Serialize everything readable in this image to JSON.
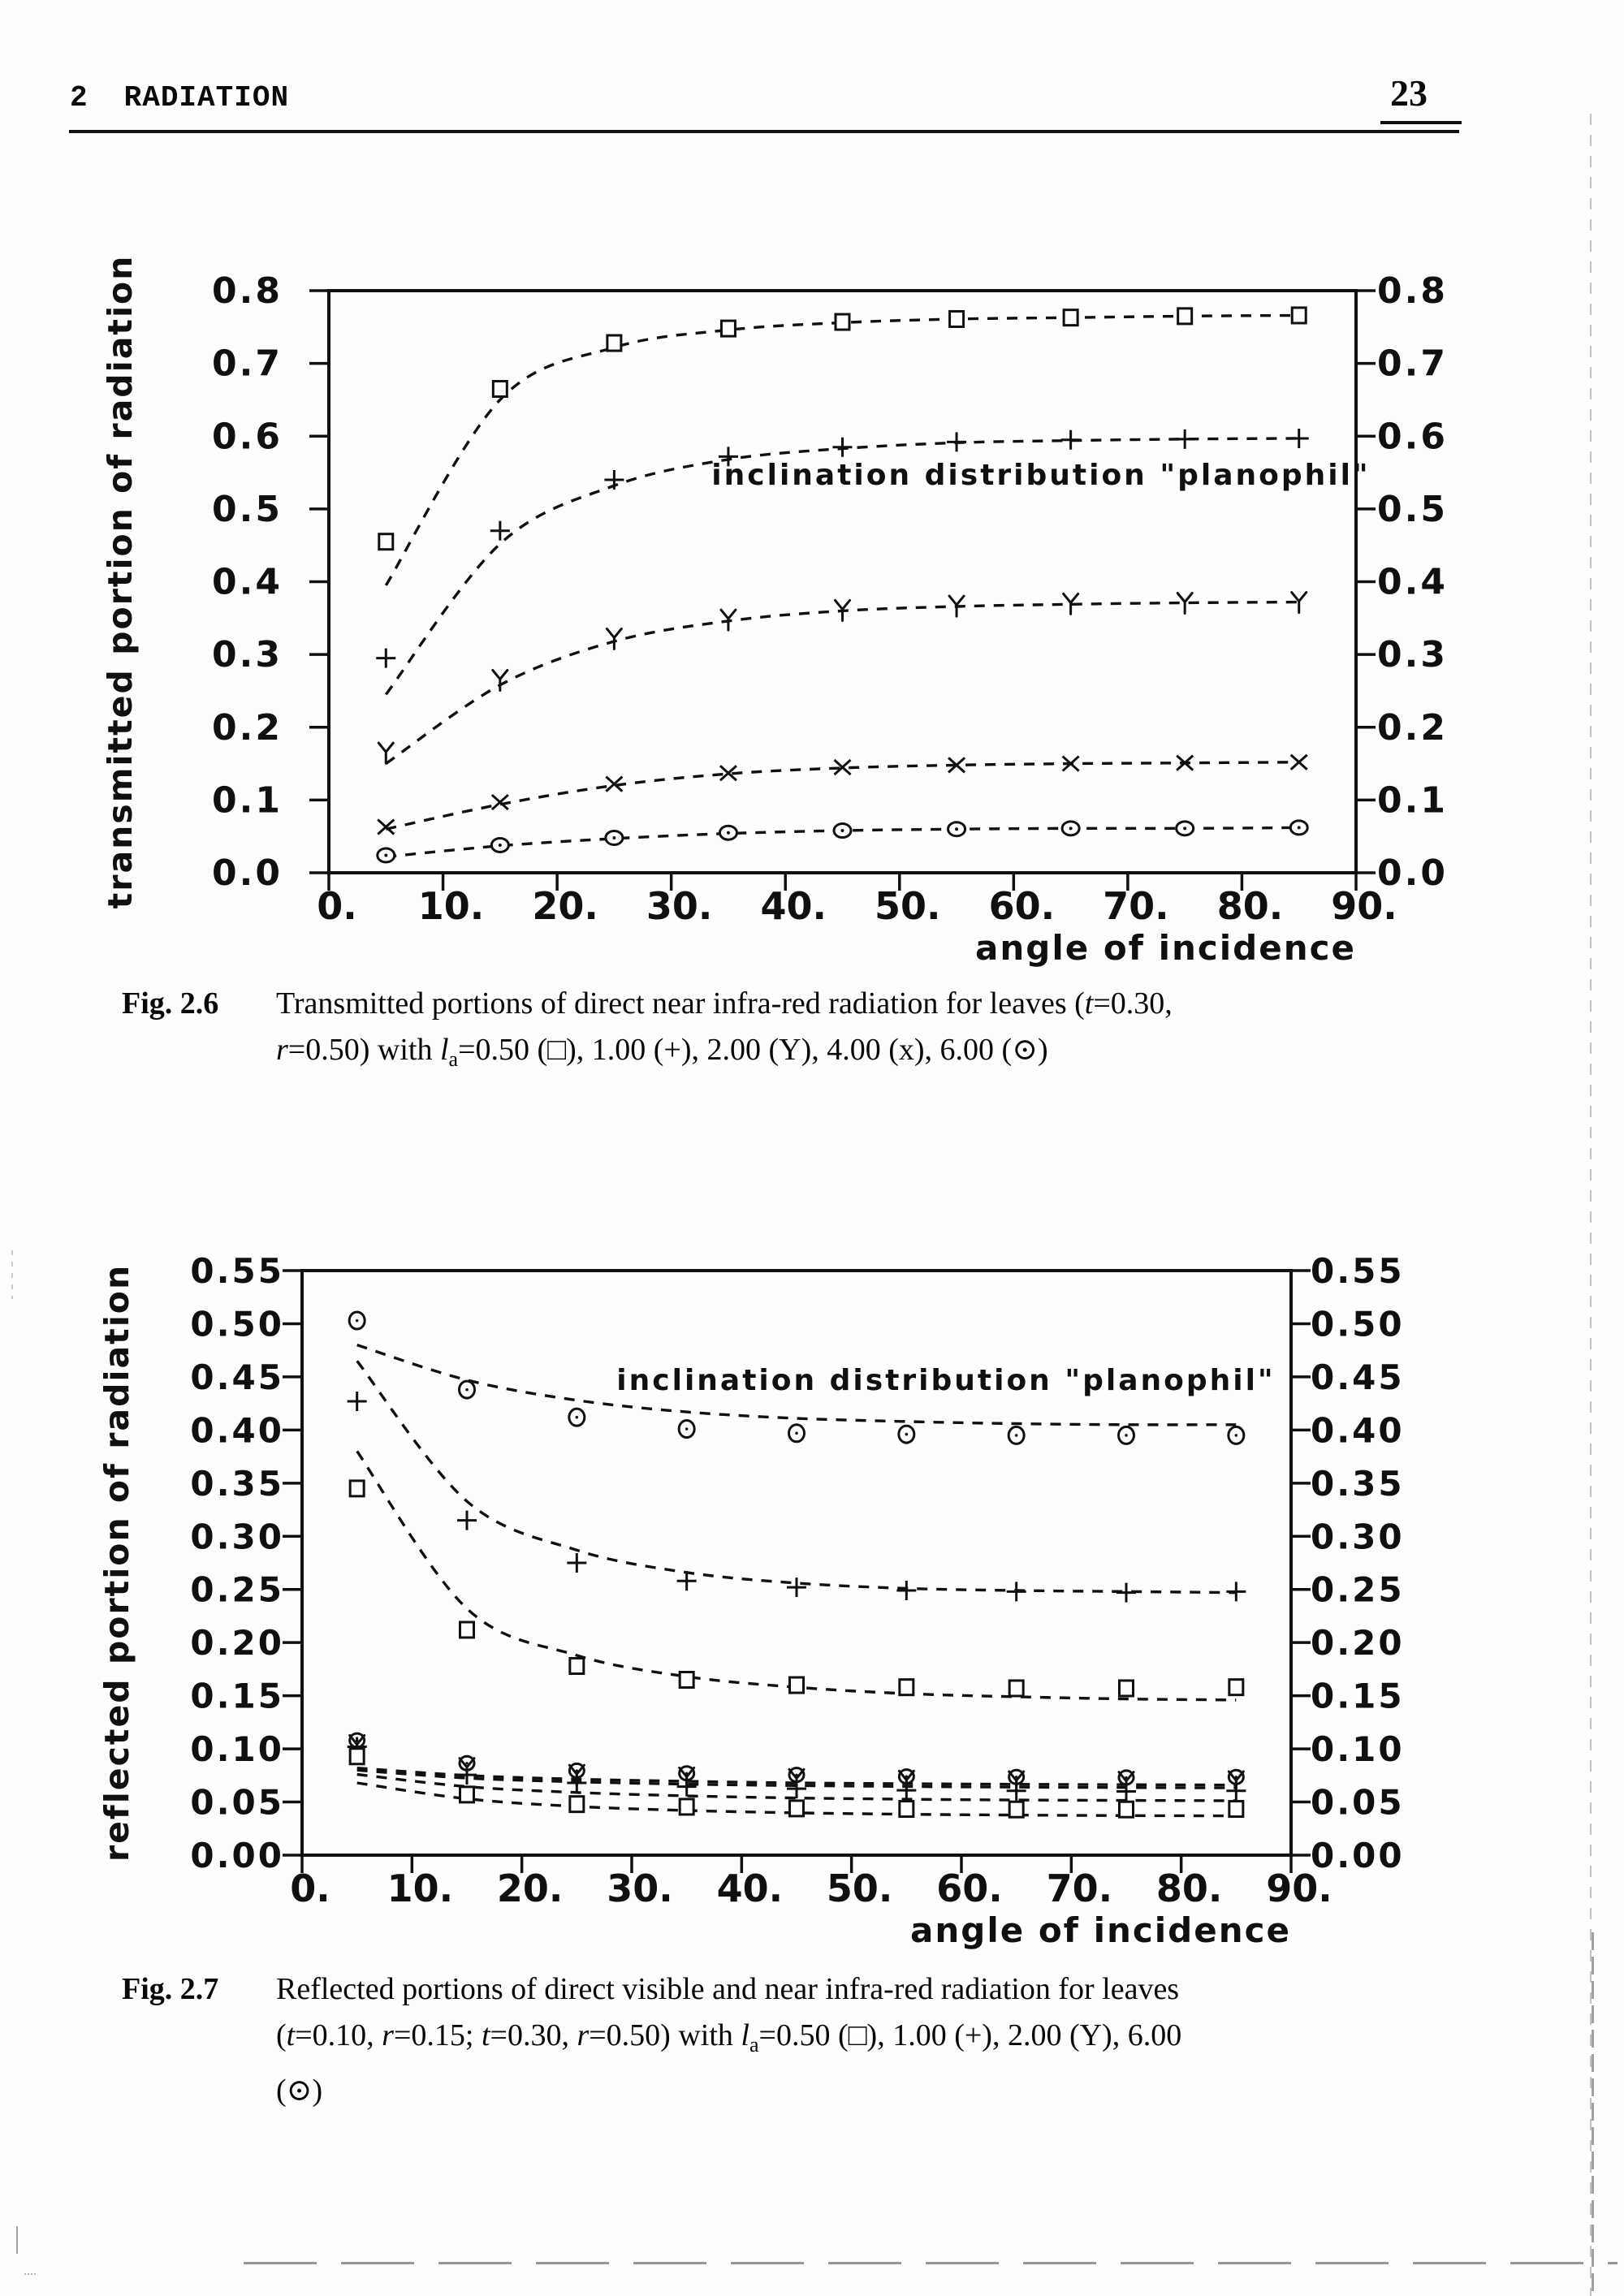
{
  "header": {
    "chapter": "2",
    "title": "RADIATION",
    "page_number": "23"
  },
  "figures": [
    {
      "label": "Fig. 2.6",
      "lines": [
        [
          {
            "t": "Transmitted portions of direct near infra-red radiation for leaves ("
          },
          {
            "t": "t",
            "s": "i"
          },
          {
            "t": "=0.30,"
          }
        ],
        [
          {
            "t": "r",
            "s": "i"
          },
          {
            "t": "=0.50) with "
          },
          {
            "t": "l",
            "s": "i"
          },
          {
            "t": "a",
            "s": "sub"
          },
          {
            "t": "=0.50 (□), 1.00 (+), 2.00 (Y), 4.00 (x), 6.00 (⊙)"
          }
        ]
      ]
    },
    {
      "label": "Fig. 2.7",
      "lines": [
        [
          {
            "t": "Reflected portions of direct visible and near infra-red radiation for leaves"
          }
        ],
        [
          {
            "t": "("
          },
          {
            "t": "t",
            "s": "i"
          },
          {
            "t": "=0.10, "
          },
          {
            "t": "r",
            "s": "i"
          },
          {
            "t": "=0.15; "
          },
          {
            "t": "t",
            "s": "i"
          },
          {
            "t": "=0.30, "
          },
          {
            "t": "r",
            "s": "i"
          },
          {
            "t": "=0.50) with "
          },
          {
            "t": "l",
            "s": "i"
          },
          {
            "t": "a",
            "s": "sub"
          },
          {
            "t": "=0.50 (□), 1.00 (+), 2.00 (Y), 6.00"
          }
        ],
        [
          {
            "t": "(⊙)"
          }
        ]
      ]
    }
  ],
  "chart_data": [
    {
      "type": "line",
      "title": "inclination distribution \"planophil\"",
      "xlabel": "angle of incidence",
      "ylabel": "transmitted portion of radiation",
      "xlim": [
        0,
        90
      ],
      "ylim": [
        0,
        0.8
      ],
      "grid": false,
      "legend_position": "none",
      "xticks": {
        "values": [
          0,
          10,
          20,
          30,
          40,
          50,
          60,
          70,
          80,
          90
        ],
        "labels": [
          "0.",
          "10.",
          "20.",
          "30.",
          "40.",
          "50.",
          "60.",
          "70.",
          "80.",
          "90."
        ]
      },
      "yticks": {
        "values": [
          0,
          0.1,
          0.2,
          0.3,
          0.4,
          0.5,
          0.6,
          0.7,
          0.8
        ],
        "labels": [
          "0.0",
          "0.1",
          "0.2",
          "0.3",
          "0.4",
          "0.5",
          "0.6",
          "0.7",
          "0.8"
        ]
      },
      "x": [
        5,
        15,
        25,
        35,
        45,
        55,
        65,
        75,
        85
      ],
      "series": [
        {
          "key": "la050",
          "name": "la=0.50",
          "marker": "square",
          "values": [
            0.455,
            0.665,
            0.728,
            0.748,
            0.757,
            0.761,
            0.763,
            0.765,
            0.766
          ],
          "fit": [
            0.395,
            0.65,
            0.722,
            0.746,
            0.756,
            0.761,
            0.763,
            0.765,
            0.766
          ]
        },
        {
          "key": "la100",
          "name": "la=1.00",
          "marker": "plus",
          "values": [
            0.295,
            0.47,
            0.54,
            0.572,
            0.585,
            0.592,
            0.595,
            0.596,
            0.597
          ],
          "fit": [
            0.245,
            0.452,
            0.532,
            0.568,
            0.583,
            0.591,
            0.594,
            0.596,
            0.597
          ]
        },
        {
          "key": "la200",
          "name": "la=2.00",
          "marker": "Y",
          "values": [
            0.165,
            0.265,
            0.322,
            0.348,
            0.361,
            0.367,
            0.37,
            0.371,
            0.372
          ],
          "fit": [
            0.15,
            0.258,
            0.318,
            0.346,
            0.36,
            0.366,
            0.369,
            0.371,
            0.372
          ]
        },
        {
          "key": "la400",
          "name": "la=4.00",
          "marker": "xmark",
          "values": [
            0.063,
            0.097,
            0.122,
            0.137,
            0.145,
            0.148,
            0.15,
            0.151,
            0.152
          ],
          "fit": [
            0.06,
            0.094,
            0.12,
            0.136,
            0.144,
            0.148,
            0.15,
            0.151,
            0.152
          ]
        },
        {
          "key": "la600",
          "name": "la=6.00",
          "marker": "odot-wide",
          "values": [
            0.024,
            0.038,
            0.048,
            0.055,
            0.058,
            0.06,
            0.061,
            0.061,
            0.062
          ],
          "fit": [
            0.022,
            0.037,
            0.047,
            0.054,
            0.058,
            0.06,
            0.061,
            0.061,
            0.062
          ]
        }
      ]
    },
    {
      "type": "line",
      "title": "inclination distribution \"planophil\"",
      "xlabel": "angle of incidence",
      "ylabel": "reflected portion of radiation",
      "xlim": [
        0,
        90
      ],
      "ylim": [
        0,
        0.55
      ],
      "grid": false,
      "legend_position": "none",
      "xticks": {
        "values": [
          0,
          10,
          20,
          30,
          40,
          50,
          60,
          70,
          80,
          90
        ],
        "labels": [
          "0.",
          "10.",
          "20.",
          "30.",
          "40.",
          "50.",
          "60.",
          "70.",
          "80.",
          "90."
        ]
      },
      "yticks": {
        "values": [
          0,
          0.05,
          0.1,
          0.15,
          0.2,
          0.25,
          0.3,
          0.35,
          0.4,
          0.45,
          0.5,
          0.55
        ],
        "labels": [
          "0.00",
          "0.05",
          "0.10",
          "0.15",
          "0.20",
          "0.25",
          "0.30",
          "0.35",
          "0.40",
          "0.45",
          "0.50",
          "0.55"
        ]
      },
      "x": [
        5,
        15,
        25,
        35,
        45,
        55,
        65,
        75,
        85
      ],
      "series": [
        {
          "key": "nir-la600",
          "name": "NIR la=6.00",
          "marker": "odot",
          "values": [
            0.503,
            0.438,
            0.412,
            0.401,
            0.397,
            0.396,
            0.395,
            0.395,
            0.395
          ],
          "fit": [
            0.48,
            0.447,
            0.428,
            0.417,
            0.411,
            0.408,
            0.406,
            0.405,
            0.405
          ]
        },
        {
          "key": "nir-la100",
          "name": "NIR la=1.00",
          "marker": "plus",
          "values": [
            0.427,
            0.315,
            0.275,
            0.258,
            0.252,
            0.249,
            0.248,
            0.247,
            0.248
          ],
          "fit": [
            0.465,
            0.333,
            0.287,
            0.266,
            0.256,
            0.251,
            0.249,
            0.248,
            0.247
          ]
        },
        {
          "key": "nir-la050",
          "name": "NIR la=0.50",
          "marker": "square",
          "values": [
            0.345,
            0.212,
            0.178,
            0.165,
            0.16,
            0.158,
            0.157,
            0.157,
            0.158
          ],
          "fit": [
            0.38,
            0.232,
            0.188,
            0.168,
            0.158,
            0.152,
            0.149,
            0.147,
            0.146
          ]
        },
        {
          "key": "vis-la200",
          "name": "VIS la=2.00",
          "marker": "Y",
          "values": [
            0.1035,
            0.082,
            0.0755,
            0.073,
            0.0715,
            0.07,
            0.0695,
            0.069,
            0.0695
          ],
          "fit": [
            0.08,
            0.0725,
            0.069,
            0.0668,
            0.0655,
            0.0646,
            0.064,
            0.0636,
            0.0633
          ]
        },
        {
          "key": "vis-la600",
          "name": "VIS la=6.00",
          "marker": "odot-small",
          "values": [
            0.108,
            0.0865,
            0.0795,
            0.077,
            0.0755,
            0.074,
            0.0735,
            0.073,
            0.0735
          ],
          "fit": [
            0.082,
            0.075,
            0.0715,
            0.0695,
            0.068,
            0.0672,
            0.0667,
            0.0663,
            0.066
          ]
        },
        {
          "key": "vis-la100",
          "name": "VIS la=1.00",
          "marker": "plus",
          "values": [
            0.102,
            0.0755,
            0.068,
            0.0645,
            0.0625,
            0.061,
            0.0605,
            0.06,
            0.0605
          ],
          "fit": [
            0.076,
            0.0645,
            0.059,
            0.0558,
            0.0538,
            0.0526,
            0.0519,
            0.0515,
            0.0512
          ]
        },
        {
          "key": "vis-la050",
          "name": "VIS la=0.50",
          "marker": "square",
          "values": [
            0.093,
            0.057,
            0.048,
            0.0455,
            0.044,
            0.0435,
            0.043,
            0.043,
            0.0435
          ],
          "fit": [
            0.068,
            0.053,
            0.0458,
            0.042,
            0.0398,
            0.0385,
            0.0377,
            0.0372,
            0.037
          ]
        }
      ]
    }
  ]
}
